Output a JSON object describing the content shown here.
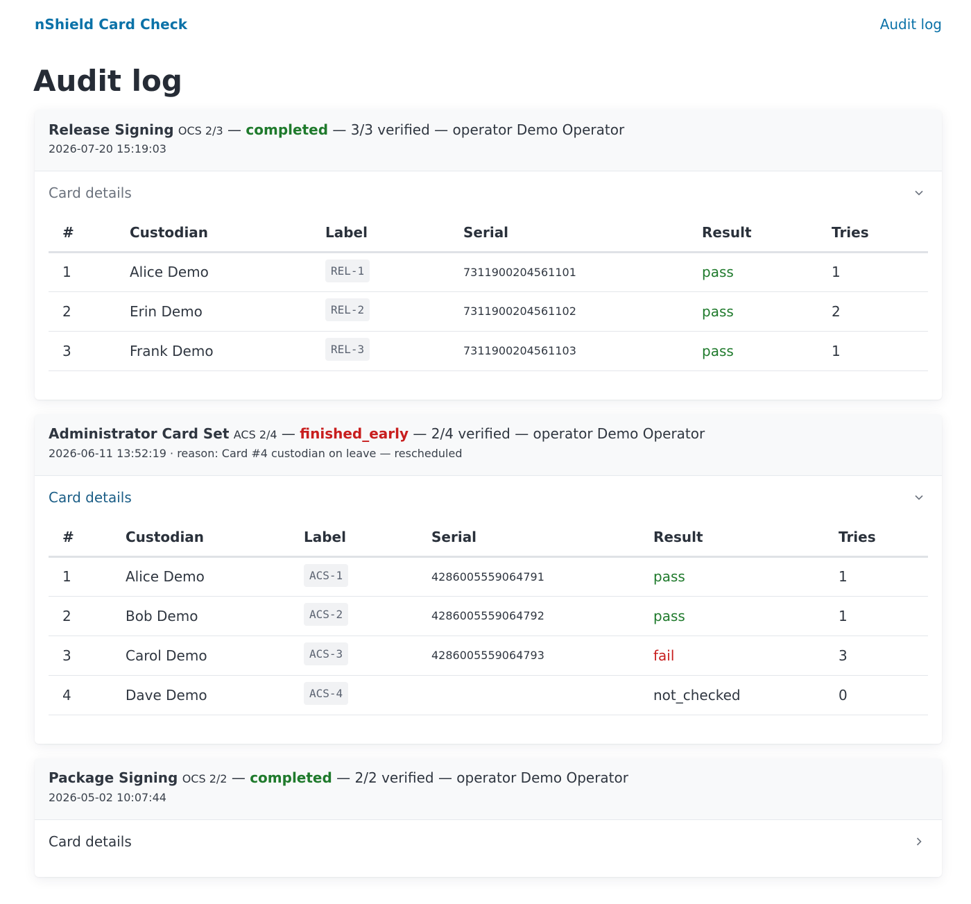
{
  "nav": {
    "brand": "nShield Card Check",
    "audit_link": "Audit log"
  },
  "page": {
    "title": "Audit log"
  },
  "sessions": [
    {
      "name": "Release Signing",
      "kind": "OCS 2/3",
      "sep1": " — ",
      "status": "completed",
      "rest": " — 3/3 verified — operator Demo Operator",
      "meta": "2026-07-20 15:19:03",
      "details_label": "Card details",
      "expanded": true,
      "columns": [
        "#",
        "Custodian",
        "Label",
        "Serial",
        "Result",
        "Tries"
      ],
      "rows": [
        {
          "n": "1",
          "custodian": "Alice Demo",
          "label": "REL-1",
          "serial": "7311900204561101",
          "result": "pass",
          "tries": "1"
        },
        {
          "n": "2",
          "custodian": "Erin Demo",
          "label": "REL-2",
          "serial": "7311900204561102",
          "result": "pass",
          "tries": "2"
        },
        {
          "n": "3",
          "custodian": "Frank Demo",
          "label": "REL-3",
          "serial": "7311900204561103",
          "result": "pass",
          "tries": "1"
        }
      ]
    },
    {
      "name": "Administrator Card Set",
      "kind": "ACS 2/4",
      "sep1": " — ",
      "status": "finished_early",
      "rest": " — 2/4 verified — operator Demo Operator",
      "meta": "2026-06-11 13:52:19 · reason: Card #4 custodian on leave — rescheduled",
      "details_label": "Card details",
      "expanded": true,
      "columns": [
        "#",
        "Custodian",
        "Label",
        "Serial",
        "Result",
        "Tries"
      ],
      "rows": [
        {
          "n": "1",
          "custodian": "Alice Demo",
          "label": "ACS-1",
          "serial": "4286005559064791",
          "result": "pass",
          "tries": "1"
        },
        {
          "n": "2",
          "custodian": "Bob Demo",
          "label": "ACS-2",
          "serial": "4286005559064792",
          "result": "pass",
          "tries": "1"
        },
        {
          "n": "3",
          "custodian": "Carol Demo",
          "label": "ACS-3",
          "serial": "4286005559064793",
          "result": "fail",
          "tries": "3"
        },
        {
          "n": "4",
          "custodian": "Dave Demo",
          "label": "ACS-4",
          "serial": "",
          "result": "not_checked",
          "tries": "0"
        }
      ]
    },
    {
      "name": "Package Signing",
      "kind": "OCS 2/2",
      "sep1": " — ",
      "status": "completed",
      "rest": " — 2/2 verified — operator Demo Operator",
      "meta": "2026-05-02 10:07:44",
      "details_label": "Card details",
      "expanded": false
    }
  ],
  "colors": {
    "link": "#0b72a8",
    "pass": "#1f7a2c",
    "fail": "#c81e1e",
    "focused_toggle": "#1a5d86"
  },
  "icons": {
    "expanded": "chevron-down-icon",
    "collapsed": "chevron-right-icon"
  }
}
